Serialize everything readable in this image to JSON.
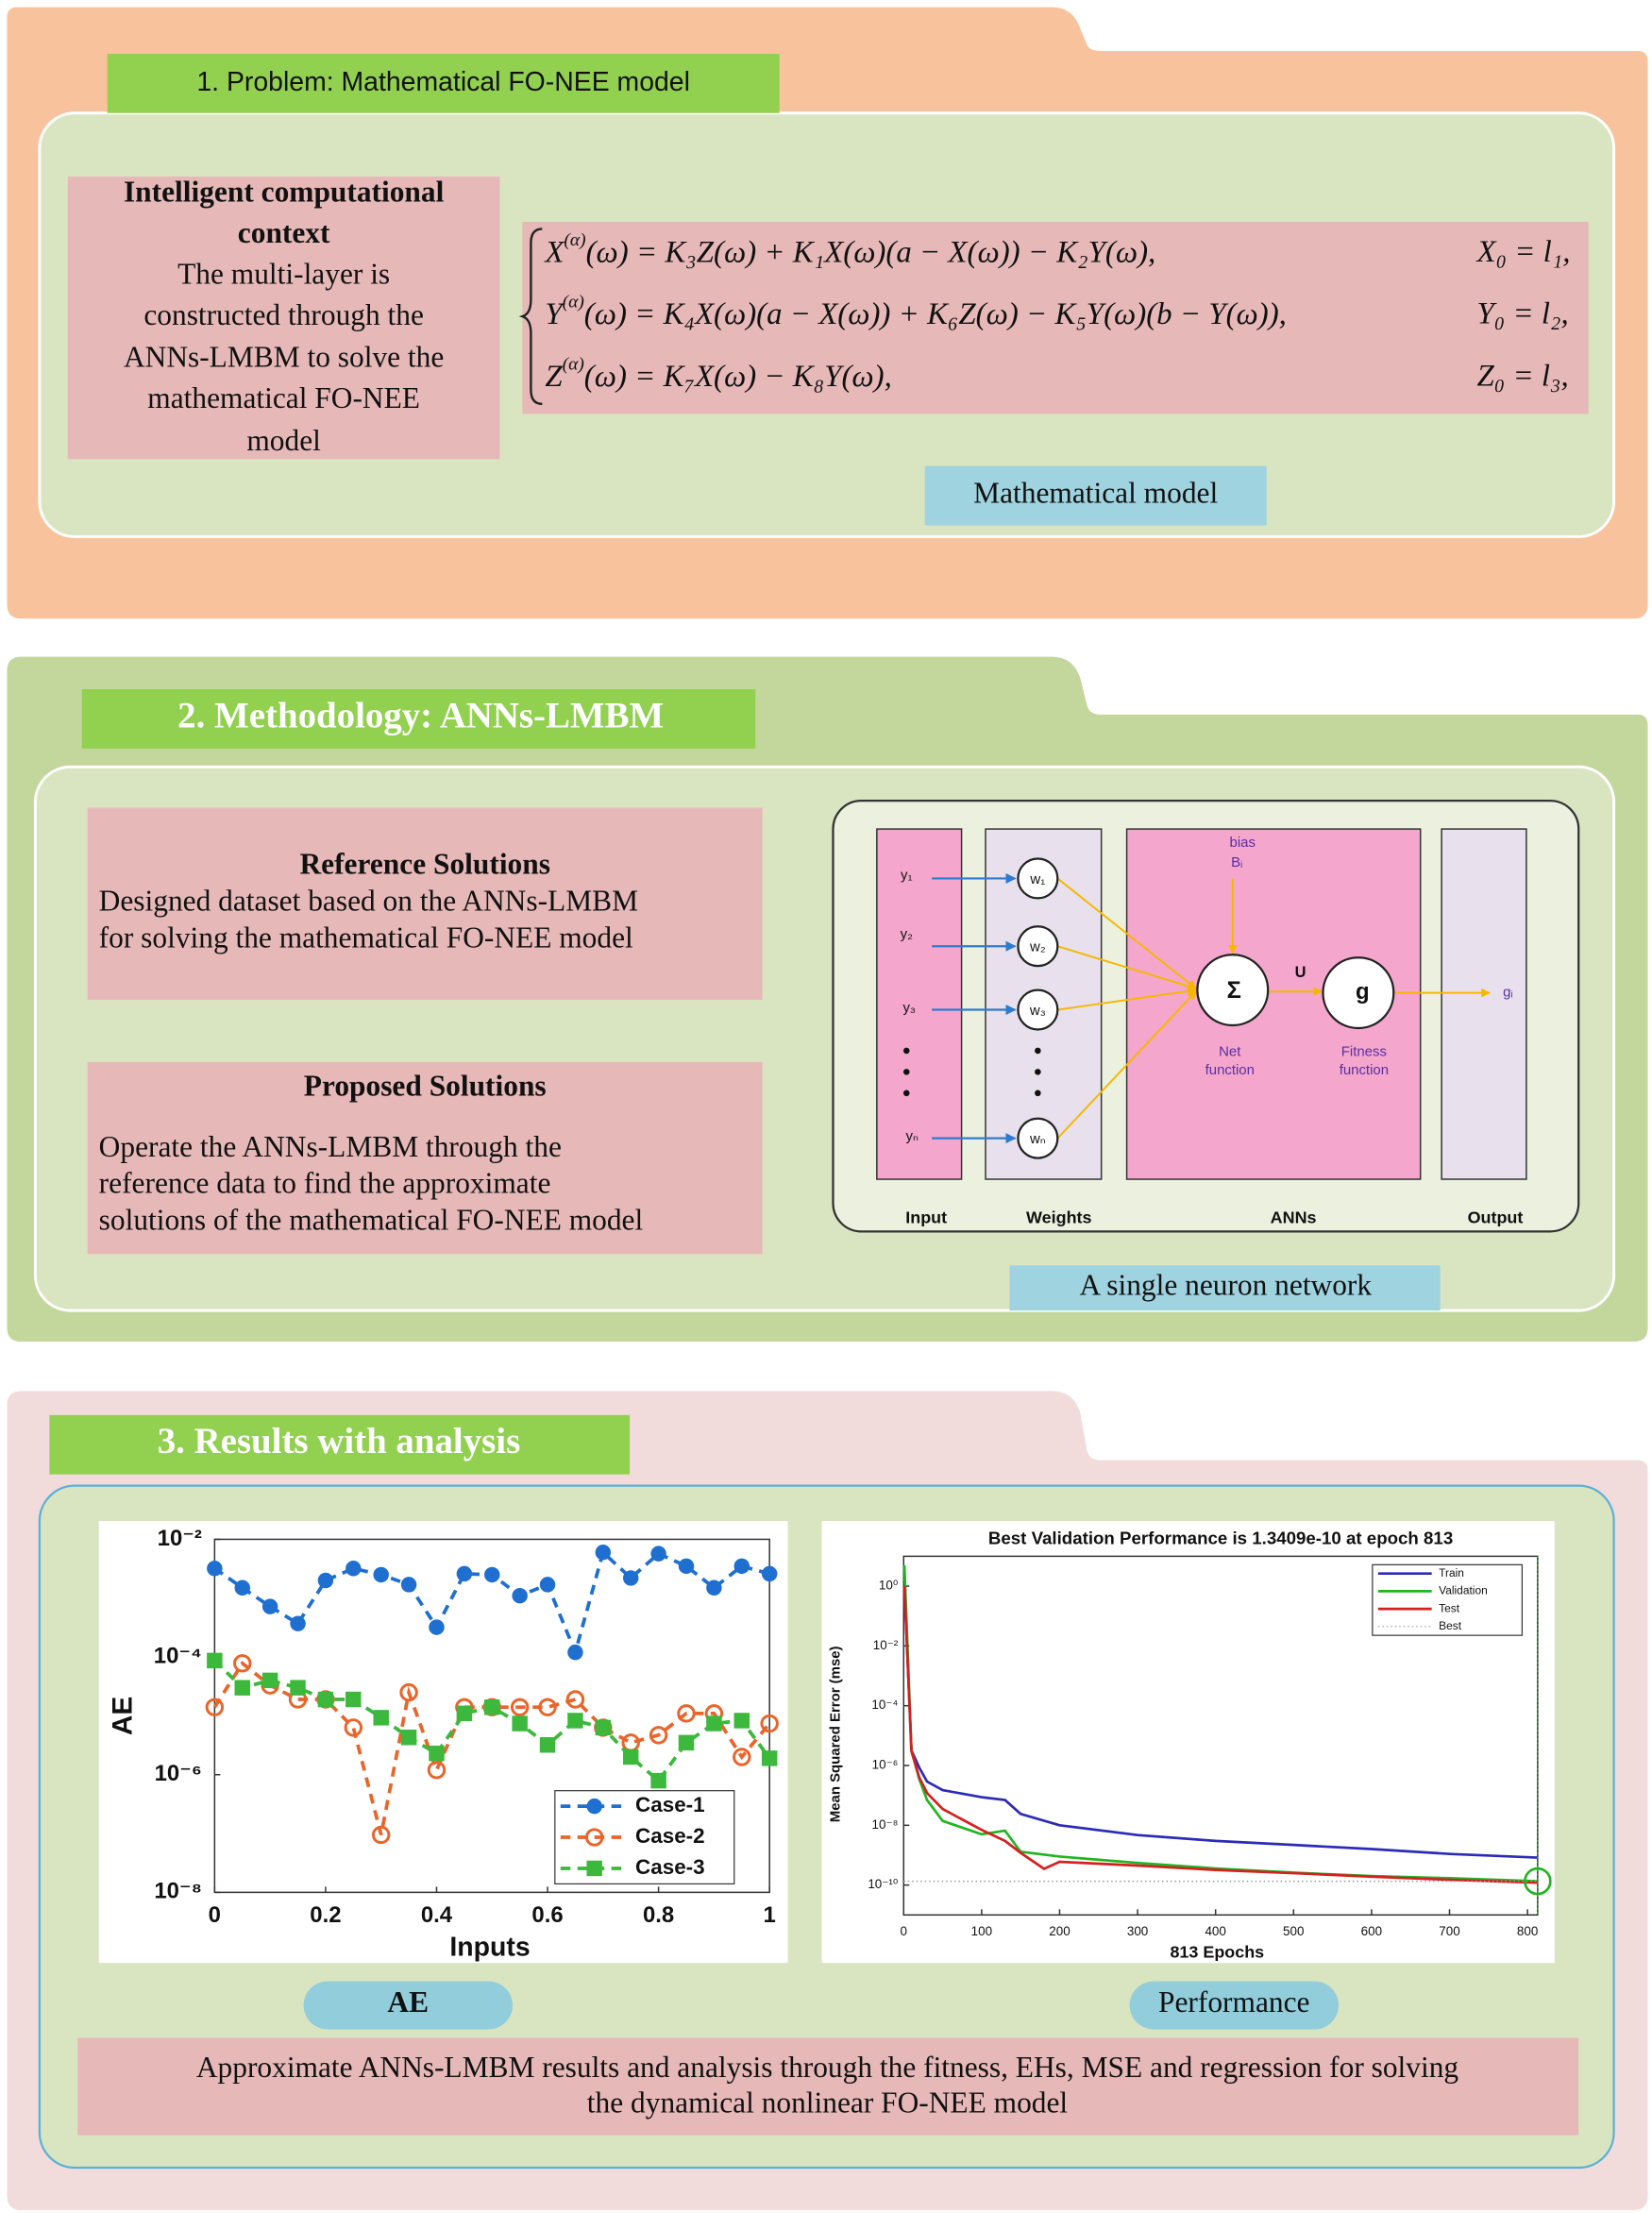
{
  "problem": {
    "title": "1. Problem: Mathematical FO-NEE model",
    "context_title": [
      "Intelligent computational",
      "context"
    ],
    "context_body": [
      "The multi-layer is",
      "constructed through the",
      "ANNs-LMBM to solve the",
      "mathematical FO-NEE",
      "model"
    ],
    "equations": [
      {
        "lhs": "X",
        "sup": "(α)",
        "rhs": "(ω) = K₃Z(ω) + K₁X(ω)(a − X(ω)) − K₂Y(ω),",
        "init": "X₀ = l₁,"
      },
      {
        "lhs": "Y",
        "sup": "(α)",
        "rhs": "(ω) = K₄X(ω)(a − X(ω)) + K₆Z(ω) − K₅Y(ω)(b − Y(ω)),",
        "init": "Y₀ = l₂,"
      },
      {
        "lhs": "Z",
        "sup": "(α)",
        "rhs": "(ω) = K₇X(ω) − K₈Y(ω),",
        "init": "Z₀ = l₃,"
      }
    ],
    "caption": "Mathematical model"
  },
  "methodology": {
    "title": "2. Methodology: ANNs-LMBM",
    "reference_title": "Reference Solutions",
    "reference_body": [
      "Designed dataset based on the ANNs-LMBM",
      "for solving the mathematical FO-NEE model"
    ],
    "proposed_title": "Proposed Solutions",
    "proposed_body": [
      "Operate the ANNs-LMBM through the",
      "reference data to find the approximate",
      "solutions of the mathematical FO-NEE model"
    ],
    "network": {
      "inputs": [
        "y₁",
        "y₂",
        "y₃",
        "yₙ"
      ],
      "weights": [
        "w₁",
        "w₂",
        "w₃",
        "wₙ"
      ],
      "bias": "bias",
      "bias_symbol": "Bᵢ",
      "sum": "Σ",
      "u": "U",
      "g": "g",
      "net_function": [
        "Net",
        "function"
      ],
      "fitness_function": [
        "Fitness",
        "function"
      ],
      "output": "gᵢ",
      "columns": [
        "Input",
        "Weights",
        "ANNs",
        "Output"
      ]
    },
    "caption": "A single neuron network"
  },
  "results": {
    "title": "3. Results with analysis",
    "captions": [
      "AE",
      "Performance"
    ],
    "summary": [
      "Approximate ANNs-LMBM results and analysis through the fitness, EHs, MSE and regression for solving",
      "the dynamical nonlinear FO-NEE model"
    ]
  },
  "chart_data": [
    {
      "type": "line",
      "x_label": "Inputs",
      "y_label": "AE",
      "ylog": true,
      "grid": false,
      "legend": "lower right",
      "xlim": [
        0,
        1
      ],
      "ylim": [
        1e-08,
        0.01
      ],
      "xticks": [
        0,
        0.2,
        0.4,
        0.6,
        0.8,
        1
      ],
      "yticks": [
        {
          "value": 0.01,
          "label": "10⁻²"
        },
        {
          "value": 0.0001,
          "label": "10⁻⁴"
        },
        {
          "value": 1e-06,
          "label": "10⁻⁶"
        },
        {
          "value": 1e-08,
          "label": "10⁻⁸"
        }
      ],
      "x": [
        0,
        0.05,
        0.1,
        0.15,
        0.2,
        0.25,
        0.3,
        0.35,
        0.4,
        0.45,
        0.5,
        0.55,
        0.6,
        0.65,
        0.7,
        0.75,
        0.8,
        0.85,
        0.9,
        0.95,
        1
      ],
      "series": [
        {
          "name": "Case-1",
          "color": "#1f6fd0",
          "marker": "circle",
          "dashed": true,
          "values": [
            0.0032,
            0.0015,
            0.00072,
            0.00037,
            0.002,
            0.0032,
            0.0025,
            0.0017,
            0.00032,
            0.0026,
            0.0025,
            0.0011,
            0.0017,
            0.00012,
            0.006,
            0.0022,
            0.0057,
            0.0035,
            0.0015,
            0.0035,
            0.0026
          ]
        },
        {
          "name": "Case-2",
          "color": "#e8652b",
          "marker": "open-circle",
          "dashed": true,
          "values": [
            1.4e-05,
            7.8e-05,
            3.3e-05,
            1.9e-05,
            1.9e-05,
            6.3e-06,
            9.5e-08,
            2.5e-05,
            1.2e-06,
            1.4e-05,
            1.4e-05,
            1.4e-05,
            1.4e-05,
            1.9e-05,
            6.3e-06,
            3.5e-06,
            4.7e-06,
            1.1e-05,
            1.1e-05,
            2e-06,
            7.4e-06
          ]
        },
        {
          "name": "Case-3",
          "color": "#3cb83c",
          "marker": "square",
          "dashed": true,
          "values": [
            8.7e-05,
            3e-05,
            4e-05,
            3e-05,
            1.9e-05,
            1.9e-05,
            9.3e-06,
            4.3e-06,
            2.3e-06,
            1.1e-05,
            1.4e-05,
            7.4e-06,
            3.2e-06,
            8.3e-06,
            6.3e-06,
            2e-06,
            7.9e-07,
            3.5e-06,
            7.4e-06,
            8.3e-06,
            1.9e-06
          ]
        }
      ]
    },
    {
      "type": "line",
      "title": "Best Validation Performance is 1.3409e-10 at epoch 813",
      "x_label": "813 Epochs",
      "y_label": "Mean Squared Error  (mse)",
      "ylog": true,
      "grid": false,
      "legend": "upper right",
      "xlim": [
        0,
        813
      ],
      "ylim": [
        1e-11,
        10
      ],
      "xticks": [
        0,
        100,
        200,
        300,
        400,
        500,
        600,
        700,
        800
      ],
      "yticks": [
        {
          "value": 1,
          "label": "10⁰"
        },
        {
          "value": 0.01,
          "label": "10⁻²"
        },
        {
          "value": 0.0001,
          "label": "10⁻⁴"
        },
        {
          "value": 1e-06,
          "label": "10⁻⁶"
        },
        {
          "value": 1e-08,
          "label": "10⁻⁸"
        },
        {
          "value": 1e-10,
          "label": "10⁻¹⁰"
        }
      ],
      "series": [
        {
          "name": "Train",
          "color": "#2b2bb8",
          "x": [
            1,
            10,
            20,
            30,
            50,
            100,
            130,
            150,
            200,
            300,
            400,
            500,
            600,
            700,
            813
          ],
          "values": [
            1,
            3.2e-06,
            8.5e-07,
            2.9e-07,
            1.5e-07,
            8.7e-08,
            7e-08,
            2.4e-08,
            1e-08,
            4.7e-09,
            3e-09,
            2.2e-09,
            1.6e-09,
            1.1e-09,
            8.3e-10
          ]
        },
        {
          "name": "Validation",
          "color": "#22b522",
          "x": [
            1,
            10,
            20,
            30,
            50,
            100,
            130,
            150,
            200,
            300,
            400,
            500,
            600,
            700,
            813
          ],
          "values": [
            5,
            3.2e-06,
            3.5e-07,
            7e-08,
            1.4e-08,
            5e-09,
            6.6e-09,
            1.3e-09,
            9e-10,
            5.5e-10,
            3.6e-10,
            2.6e-10,
            2e-10,
            1.7e-10,
            1.3409e-10
          ]
        },
        {
          "name": "Test",
          "color": "#d42020",
          "x": [
            1,
            10,
            20,
            30,
            50,
            100,
            130,
            150,
            180,
            200,
            300,
            400,
            500,
            600,
            700,
            813
          ],
          "values": [
            1,
            3e-06,
            4e-07,
            1.2e-07,
            3.5e-08,
            7e-09,
            3e-09,
            1.2e-09,
            3.5e-10,
            6e-10,
            4.5e-10,
            3.2e-10,
            2.5e-10,
            1.9e-10,
            1.5e-10,
            1.2e-10
          ]
        }
      ],
      "best": {
        "name": "Best",
        "epoch": 813,
        "value": 1.3409e-10,
        "color": "#22b522"
      }
    }
  ]
}
